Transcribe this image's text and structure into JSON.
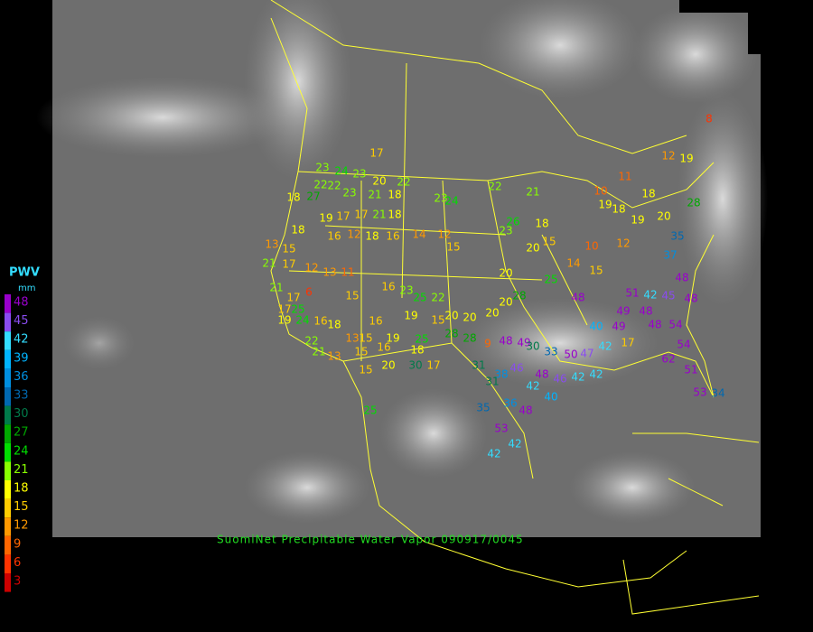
{
  "legend": {
    "title": "PWV",
    "unit": "mm",
    "levels": [
      {
        "value": 48,
        "color": "#9900cc"
      },
      {
        "value": 45,
        "color": "#8a4cf0"
      },
      {
        "value": 42,
        "color": "#33ddff"
      },
      {
        "value": 39,
        "color": "#00b4ff"
      },
      {
        "value": 36,
        "color": "#008fe0"
      },
      {
        "value": 33,
        "color": "#0068b0"
      },
      {
        "value": 30,
        "color": "#007a4a"
      },
      {
        "value": 27,
        "color": "#00a800"
      },
      {
        "value": 24,
        "color": "#00dd00"
      },
      {
        "value": 21,
        "color": "#88ff00"
      },
      {
        "value": 18,
        "color": "#ffff00"
      },
      {
        "value": 15,
        "color": "#ffcc00"
      },
      {
        "value": 12,
        "color": "#ff9900"
      },
      {
        "value": 9,
        "color": "#ff6600"
      },
      {
        "value": 6,
        "color": "#ff3300"
      },
      {
        "value": 3,
        "color": "#cc0000"
      }
    ]
  },
  "caption": "SuomiNet Precipitable Water Vapor 090917/0045",
  "stations": [
    17,
    23,
    24,
    23,
    20,
    22,
    22,
    22,
    23,
    21,
    18,
    23,
    24,
    22,
    21,
    18,
    27,
    17,
    21,
    18,
    19,
    17,
    18,
    16,
    12,
    18,
    16,
    14,
    12,
    15,
    13,
    15,
    21,
    17,
    12,
    13,
    11,
    21,
    17,
    6,
    17,
    25,
    15,
    16,
    23,
    25,
    22,
    16,
    19,
    15,
    20,
    20,
    19,
    24,
    16,
    18,
    13,
    15,
    19,
    25,
    15,
    16,
    18,
    22,
    21,
    13,
    15,
    20,
    30,
    17,
    25,
    28,
    28,
    9,
    48,
    49,
    30,
    33,
    50,
    47,
    42,
    17,
    31,
    38,
    31,
    46,
    48,
    46,
    42,
    42,
    42,
    40,
    36,
    35,
    48,
    53,
    42,
    42,
    51,
    48,
    49,
    40,
    49,
    48,
    48,
    54,
    54,
    62,
    51,
    53,
    34,
    48,
    48,
    45,
    42,
    20,
    35,
    37,
    28,
    18,
    19,
    12,
    8,
    11,
    10,
    19,
    18,
    19,
    12,
    10,
    14,
    18,
    26,
    23,
    20,
    15,
    20,
    25,
    15,
    28,
    20,
    20
  ]
}
